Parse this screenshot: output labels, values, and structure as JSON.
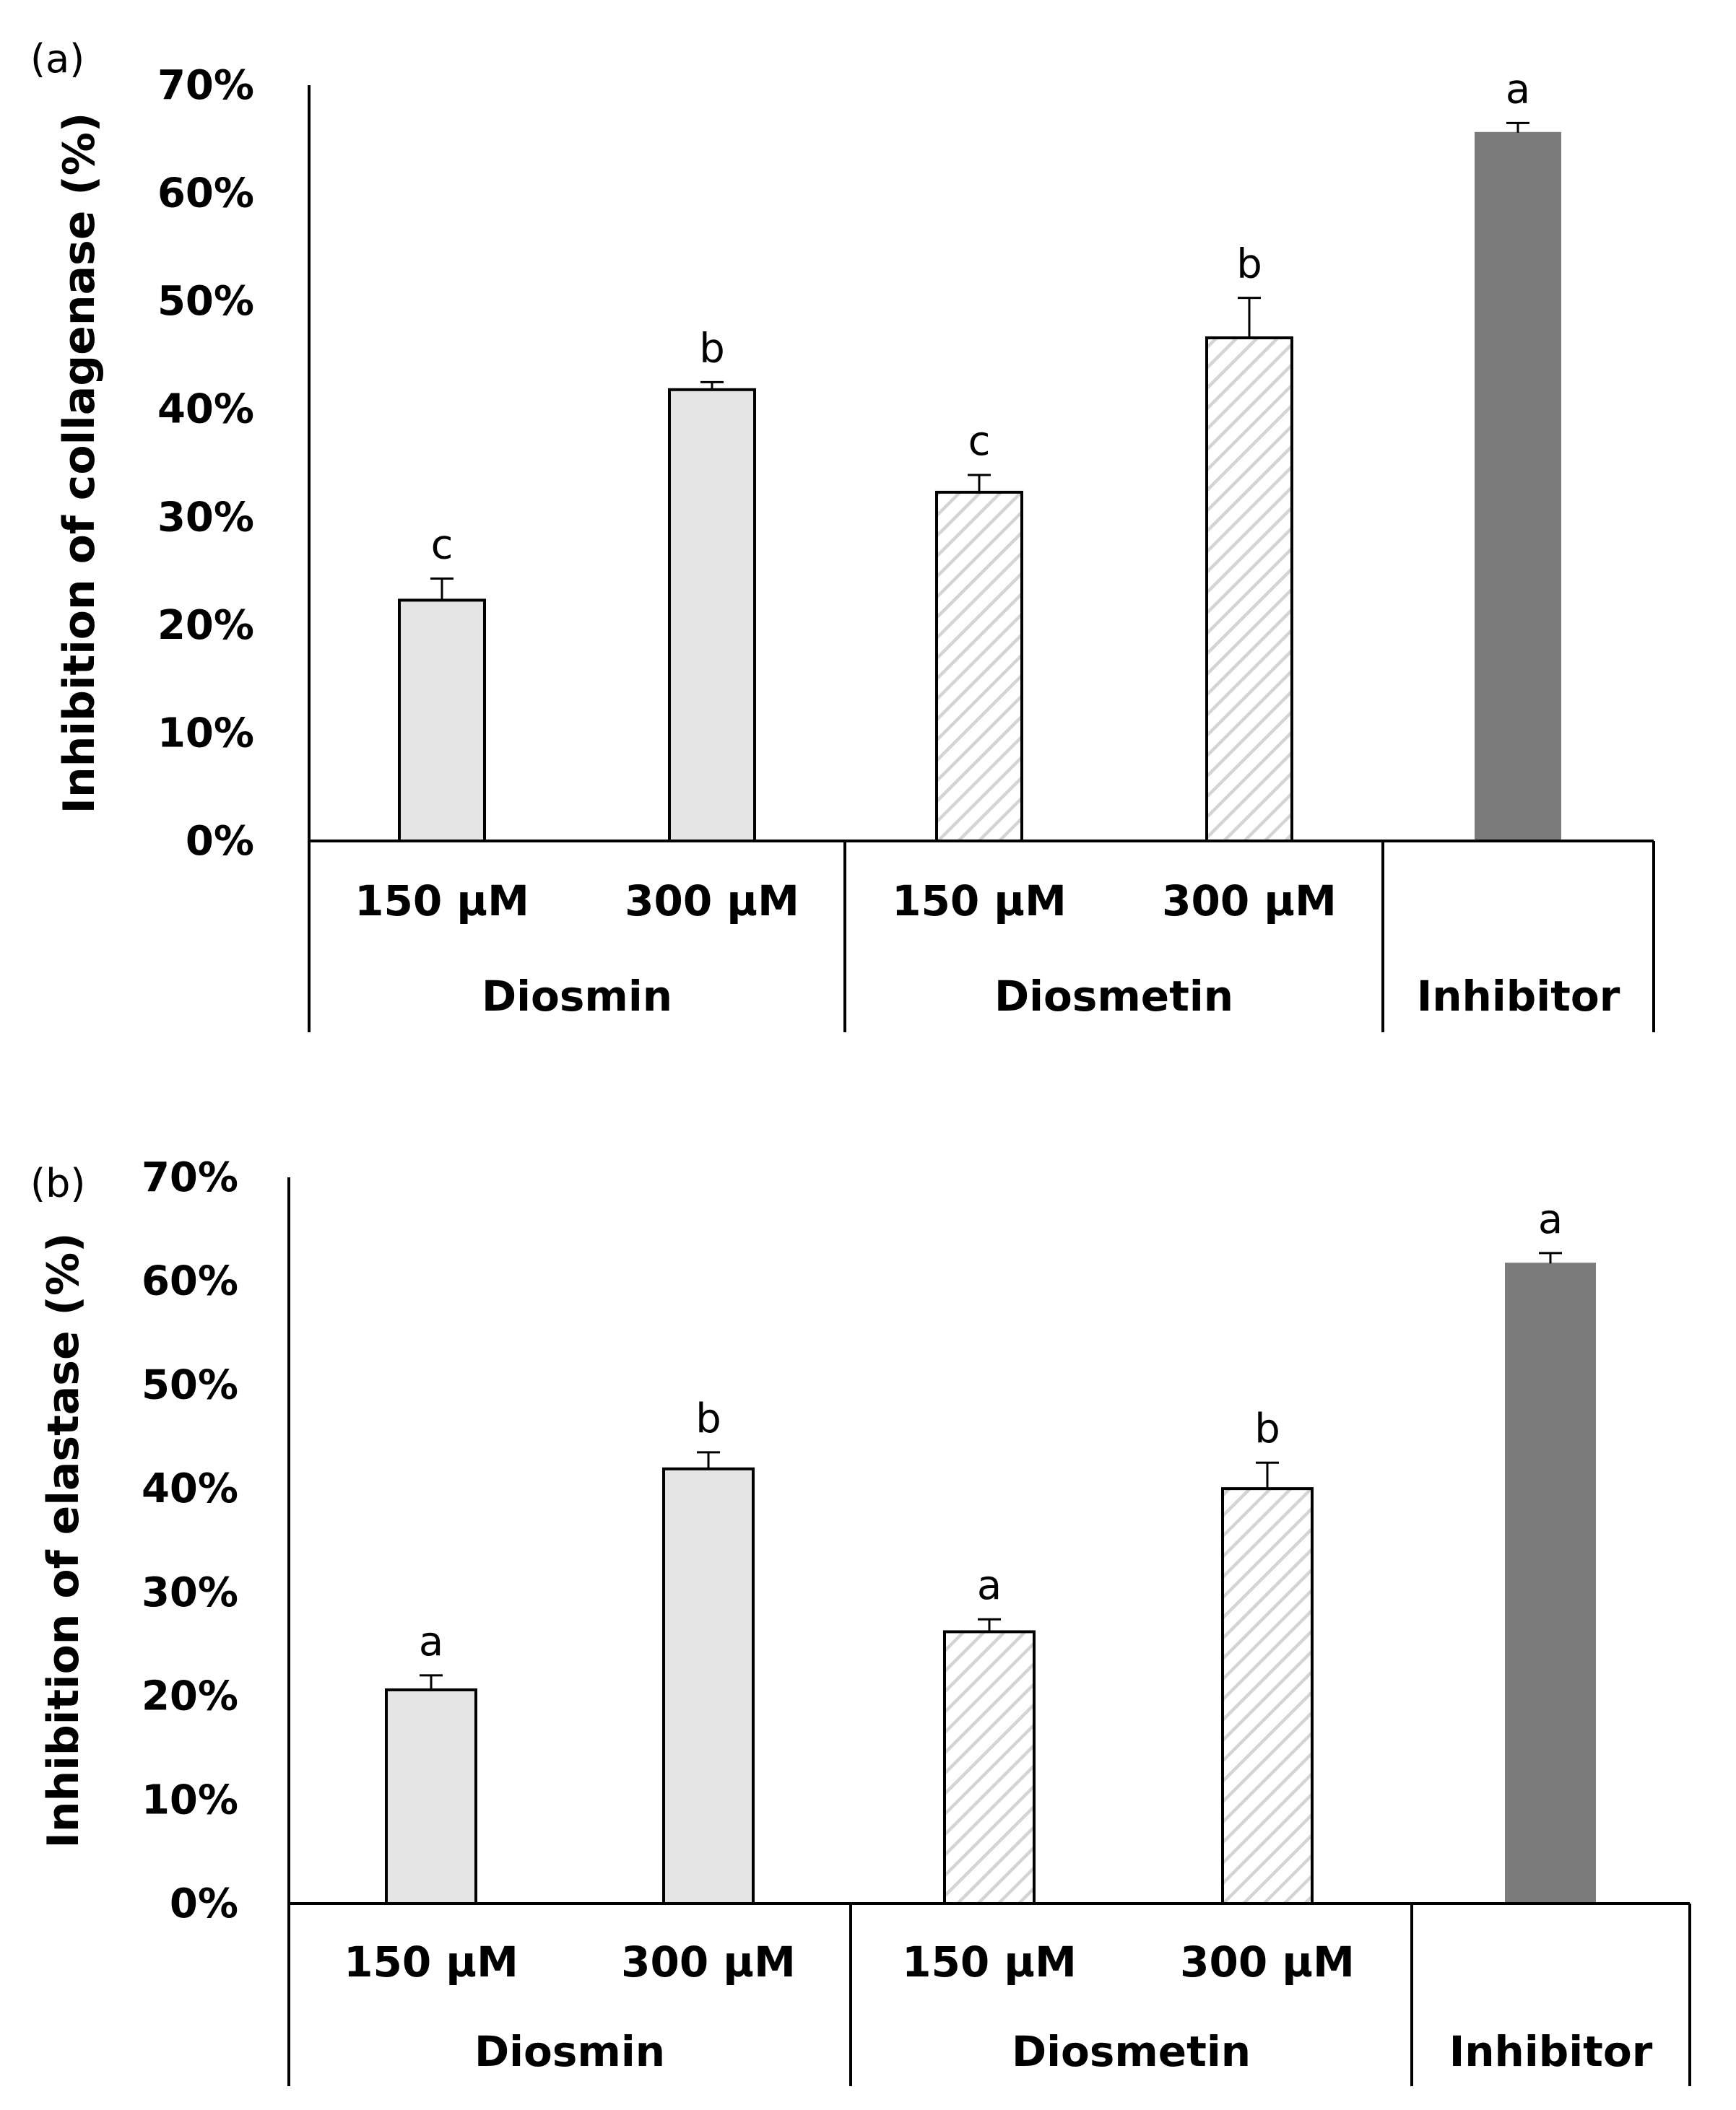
{
  "figure": {
    "colors": {
      "diosmin_fill": "#e5e5e5",
      "diosmetin_fill": "#ffffff",
      "diosmetin_hatch": "#d4d4d4",
      "inhibitor_fill": "#7b7b7b",
      "outline": "#000000"
    }
  },
  "chart_data": [
    {
      "type": "bar",
      "panel_label": "(a)",
      "ylabel": "Inhibition of collagenase (%)",
      "xlabel": "",
      "ylim": [
        0,
        70
      ],
      "yticks": [
        0,
        10,
        20,
        30,
        40,
        50,
        60,
        70
      ],
      "ytick_labels": [
        "0%",
        "10%",
        "20%",
        "30%",
        "40%",
        "50%",
        "60%",
        "70%"
      ],
      "groups": [
        {
          "name": "Diosmin",
          "style": "solid_light",
          "bars": [
            {
              "label": "150 µM",
              "value": 22.3,
              "error": 2.0,
              "sig": "c"
            },
            {
              "label": "300 µM",
              "value": 41.8,
              "error": 0.7,
              "sig": "b"
            }
          ]
        },
        {
          "name": "Diosmetin",
          "style": "hatched",
          "bars": [
            {
              "label": "150  µM",
              "value": 32.3,
              "error": 1.6,
              "sig": "c"
            },
            {
              "label": "300 µM",
              "value": 46.6,
              "error": 3.7,
              "sig": "b"
            }
          ]
        },
        {
          "name": "Inhibitor",
          "style": "solid_dark",
          "bars": [
            {
              "label": "",
              "value": 65.6,
              "error": 0.9,
              "sig": "a"
            }
          ]
        }
      ]
    },
    {
      "type": "bar",
      "panel_label": "(b)",
      "ylabel": "Inhibition of elastase  (%)",
      "xlabel": "",
      "ylim": [
        0,
        70
      ],
      "yticks": [
        0,
        10,
        20,
        30,
        40,
        50,
        60,
        70
      ],
      "ytick_labels": [
        "0%",
        "10%",
        "20%",
        "30%",
        "40%",
        "50%",
        "60%",
        "70%"
      ],
      "groups": [
        {
          "name": "Diosmin",
          "style": "solid_light",
          "bars": [
            {
              "label": "150 µM",
              "value": 20.6,
              "error": 1.4,
              "sig": "a"
            },
            {
              "label": "300 µM",
              "value": 41.9,
              "error": 1.6,
              "sig": "b"
            }
          ]
        },
        {
          "name": "Diosmetin",
          "style": "hatched",
          "bars": [
            {
              "label": "150 µM",
              "value": 26.2,
              "error": 1.2,
              "sig": "a"
            },
            {
              "label": "300 µM",
              "value": 40.0,
              "error": 2.5,
              "sig": "b"
            }
          ]
        },
        {
          "name": "Inhibitor",
          "style": "solid_dark",
          "bars": [
            {
              "label": "",
              "value": 61.7,
              "error": 1.0,
              "sig": "a"
            }
          ]
        }
      ]
    }
  ]
}
